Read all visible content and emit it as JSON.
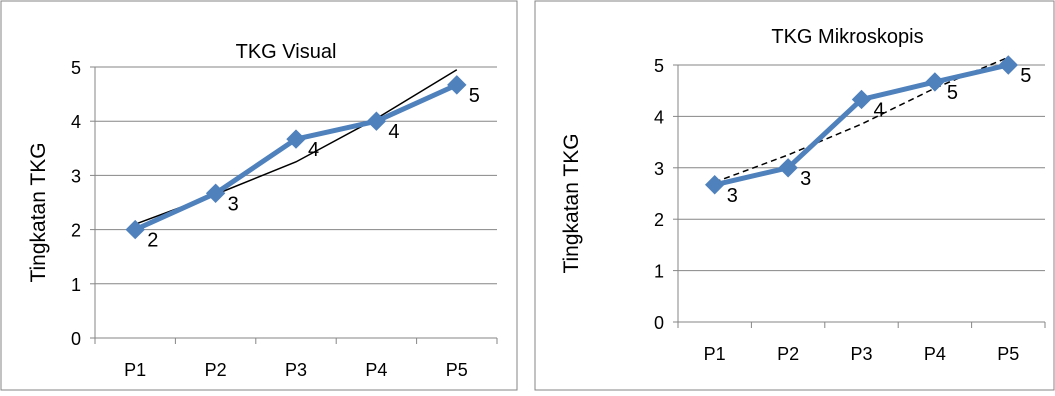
{
  "chart_data": [
    {
      "type": "line",
      "title": "TKG Visual",
      "xlabel": "",
      "ylabel": "Tingkatan TKG",
      "categories": [
        "P1",
        "P2",
        "P3",
        "P4",
        "P5"
      ],
      "series": [
        {
          "values": [
            2.0,
            2.67,
            3.67,
            4.0,
            4.67
          ],
          "data_labels": [
            "2",
            "3",
            "4",
            "4",
            "5"
          ]
        }
      ],
      "trendline": {
        "style": "solid",
        "values": [
          2.1,
          2.65,
          3.25,
          4.05,
          4.95
        ]
      },
      "y_ticks": [
        "0",
        "1",
        "2",
        "3",
        "4",
        "5"
      ],
      "ylim": [
        0,
        5
      ],
      "grid": true,
      "legend": "none",
      "colors": {
        "series": "#4F81BD",
        "trend": "#000000",
        "grid": "#868686"
      }
    },
    {
      "type": "line",
      "title": "TKG Mikroskopis",
      "xlabel": "",
      "ylabel": "Tingkatan TKG",
      "categories": [
        "P1",
        "P2",
        "P3",
        "P4",
        "P5"
      ],
      "series": [
        {
          "values": [
            2.67,
            3.0,
            4.33,
            4.67,
            5.0
          ],
          "data_labels": [
            "3",
            "3",
            "4",
            "5",
            "5"
          ]
        }
      ],
      "trendline": {
        "style": "dashed",
        "values": [
          2.72,
          3.25,
          3.85,
          4.55,
          5.15
        ]
      },
      "y_ticks": [
        "0",
        "1",
        "2",
        "3",
        "4",
        "5"
      ],
      "ylim": [
        0,
        5
      ],
      "grid": true,
      "legend": "none",
      "colors": {
        "series": "#4F81BD",
        "trend": "#000000",
        "grid": "#868686"
      }
    }
  ]
}
